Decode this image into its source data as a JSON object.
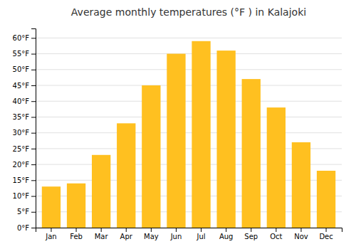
{
  "chart_data": {
    "type": "bar",
    "title": "Average monthly temperatures (°F ) in Kalajoki",
    "categories": [
      "Jan",
      "Feb",
      "Mar",
      "Apr",
      "May",
      "Jun",
      "Jul",
      "Aug",
      "Sep",
      "Oct",
      "Nov",
      "Dec"
    ],
    "values": [
      13,
      14,
      23,
      33,
      45,
      55,
      59,
      56,
      47,
      38,
      27,
      18
    ],
    "color": "#FFC020",
    "ylim": [
      0,
      63
    ],
    "yticks": [
      {
        "value": 0,
        "label": "0°F"
      },
      {
        "value": 5,
        "label": "5°F"
      },
      {
        "value": 10,
        "label": "10°F"
      },
      {
        "value": 15,
        "label": "15°F"
      },
      {
        "value": 20,
        "label": "20°F"
      },
      {
        "value": 25,
        "label": "25°F"
      },
      {
        "value": 30,
        "label": "30°F"
      },
      {
        "value": 35,
        "label": "35°F"
      },
      {
        "value": 40,
        "label": "40°F"
      },
      {
        "value": 45,
        "label": "45°F"
      },
      {
        "value": 50,
        "label": "50°F"
      },
      {
        "value": 55,
        "label": "55°F"
      },
      {
        "value": 60,
        "label": "60°F"
      }
    ],
    "grid": true
  }
}
